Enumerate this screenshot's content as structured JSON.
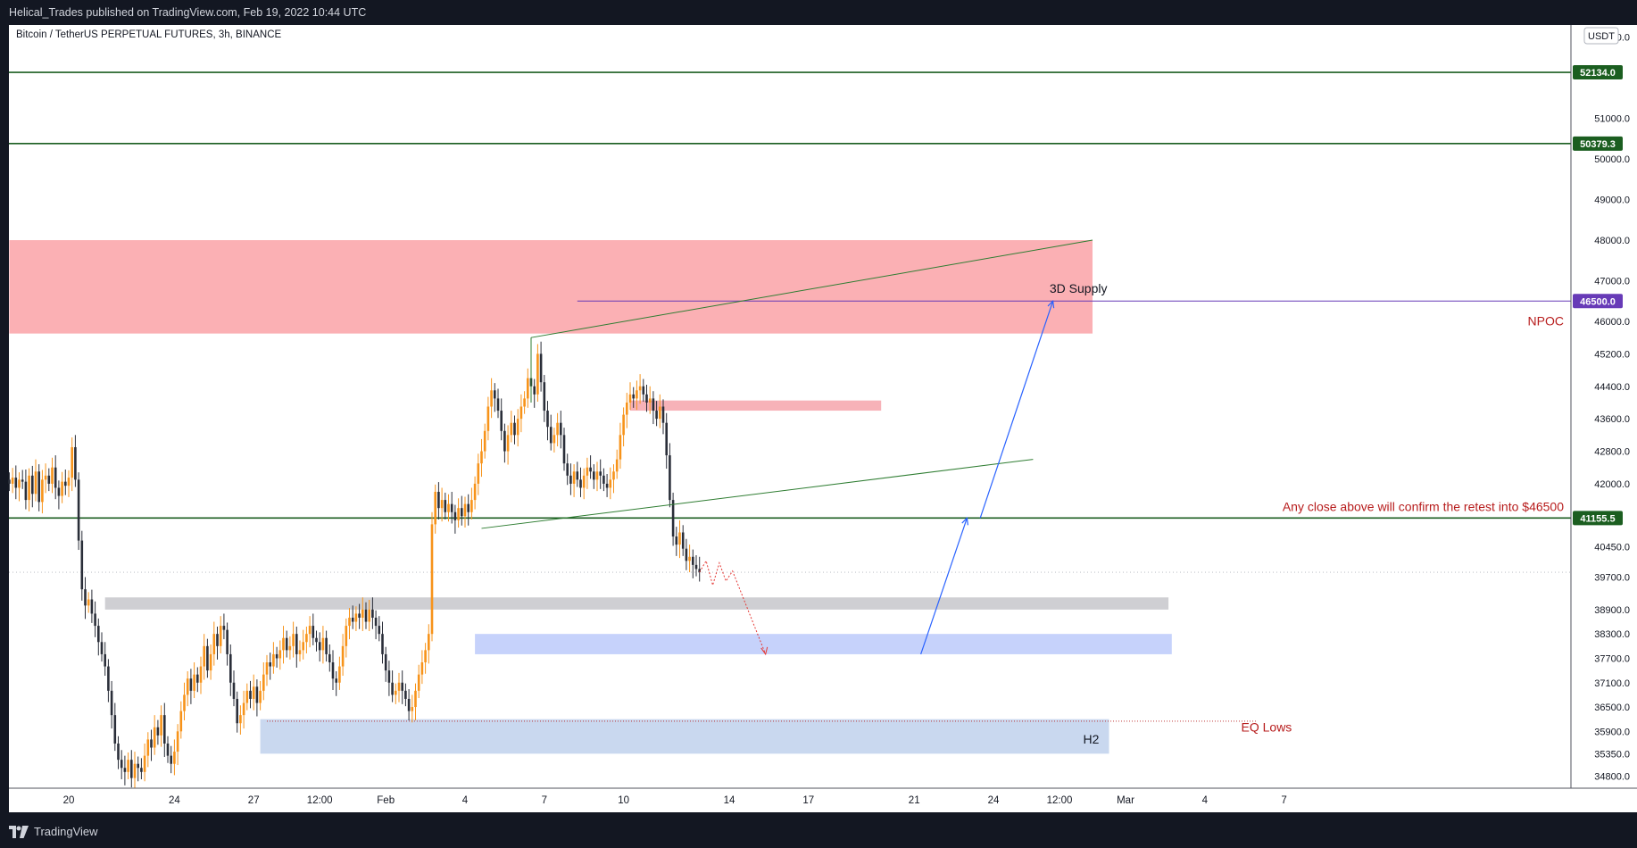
{
  "header": {
    "published": "Helical_Trades published on TradingView.com, Feb 19, 2022 10:44 UTC"
  },
  "footer": {
    "brand": "TradingView"
  },
  "chart_data": {
    "type": "candlestick",
    "symbol_title": "Bitcoin / TetherUS PERPETUAL FUTURES, 3h, BINANCE",
    "currency": "USDT",
    "ylim": [
      34500,
      53300
    ],
    "y_ticks": [
      53000,
      51000,
      50000,
      49000,
      48000,
      47000,
      46000,
      45200,
      44400,
      43600,
      42800,
      42000,
      40450,
      39700,
      38900,
      38300,
      37700,
      37100,
      36500,
      35900,
      35350,
      34800
    ],
    "y_tick_labels": [
      "53000.0",
      "51000.0",
      "50000.0",
      "49000.0",
      "48000.0",
      "47000.0",
      "46000.0",
      "45200.0",
      "44400.0",
      "43600.0",
      "42800.0",
      "42000.0",
      "40450.0",
      "39700.0",
      "38900.0",
      "38300.0",
      "37700.0",
      "37100.0",
      "36500.0",
      "35900.0",
      "35350.0",
      "34800.0"
    ],
    "x_labels": [
      {
        "label": "20",
        "x": 0
      },
      {
        "label": "24",
        "x": 32
      },
      {
        "label": "27",
        "x": 56
      },
      {
        "label": "12:00",
        "x": 76
      },
      {
        "label": "Feb",
        "x": 96
      },
      {
        "label": "4",
        "x": 120
      },
      {
        "label": "7",
        "x": 144
      },
      {
        "label": "10",
        "x": 168
      },
      {
        "label": "14",
        "x": 200
      },
      {
        "label": "17",
        "x": 224
      },
      {
        "label": "21",
        "x": 256
      },
      {
        "label": "24",
        "x": 280
      },
      {
        "label": "12:00",
        "x": 300
      },
      {
        "label": "Mar",
        "x": 320
      },
      {
        "label": "4",
        "x": 344
      },
      {
        "label": "7",
        "x": 368
      }
    ],
    "price_levels": [
      {
        "value": 52134.0,
        "label": "52134.0",
        "color": "#1b5e20"
      },
      {
        "value": 50379.3,
        "label": "50379.3",
        "color": "#1b5e20"
      },
      {
        "value": 46500.0,
        "label": "46500.0",
        "color": "#673ab7"
      },
      {
        "value": 41155.5,
        "label": "41155.5",
        "color": "#1b5e20"
      }
    ],
    "zones": [
      {
        "name": "3D Supply",
        "x0": -18,
        "x1": 310,
        "y0": 45700,
        "y1": 48000,
        "color": "#fbb0b4"
      },
      {
        "name": "small-supply",
        "x0": 170,
        "x1": 246,
        "y0": 43800,
        "y1": 44050,
        "color": "#f7b2b8"
      },
      {
        "name": "grey-zone",
        "x0": 11,
        "x1": 333,
        "y0": 38900,
        "y1": 39200,
        "color": "#cfcfd3"
      },
      {
        "name": "blue-zone",
        "x0": 123,
        "x1": 334,
        "y0": 37800,
        "y1": 38300,
        "color": "#c6d2fb"
      },
      {
        "name": "H2-zone",
        "x0": 58,
        "x1": 315,
        "y0": 35350,
        "y1": 36200,
        "color": "#c9d8ef"
      }
    ],
    "annotations": [
      {
        "text": "3D Supply",
        "color": "#131722"
      },
      {
        "text": "NPOC",
        "color": "#b71c1c"
      },
      {
        "text": "Any close above will confirm the retest into $46500",
        "color": "#b71c1c"
      },
      {
        "text": "EQ Lows",
        "color": "#b71c1c"
      },
      {
        "text": "H2",
        "color": "#131722"
      }
    ],
    "trendlines": [
      {
        "x0": 140,
        "y0": 45600,
        "x1": 310,
        "y1": 48000,
        "color": "#2e7d32"
      },
      {
        "x0": 125,
        "y0": 40900,
        "x1": 292,
        "y1": 42600,
        "color": "#2e7d32"
      }
    ],
    "arrows": [
      {
        "points": [
          [
            258,
            37800
          ],
          [
            272,
            41155
          ]
        ],
        "color": "#2962ff"
      },
      {
        "points": [
          [
            276,
            41155
          ],
          [
            298,
            46500
          ]
        ],
        "color": "#2962ff"
      }
    ],
    "last_price_dotted": 39820,
    "eq_lows_level": 36150,
    "candle_colors": {
      "up": "#f7931a",
      "down": "#2a2e39"
    },
    "candles": [
      [
        -18,
        42000
      ],
      [
        -17,
        42150
      ],
      [
        -16,
        41900
      ],
      [
        -15,
        42100
      ],
      [
        -14,
        42050
      ],
      [
        -13,
        41600
      ],
      [
        -12,
        42200
      ],
      [
        -11,
        41750
      ],
      [
        -10,
        42300
      ],
      [
        -9,
        41550
      ],
      [
        -8,
        42100
      ],
      [
        -7,
        42200
      ],
      [
        -6,
        42000
      ],
      [
        -5,
        42400
      ],
      [
        -4,
        41900
      ],
      [
        -3,
        41700
      ],
      [
        -2,
        42050
      ],
      [
        -1,
        41950
      ],
      [
        0,
        42150
      ],
      [
        1,
        42900
      ],
      [
        2,
        42100
      ],
      [
        3,
        40600
      ],
      [
        4,
        39400
      ],
      [
        5,
        39000
      ],
      [
        6,
        39150
      ],
      [
        7,
        38800
      ],
      [
        8,
        38500
      ],
      [
        9,
        38100
      ],
      [
        10,
        37800
      ],
      [
        11,
        37500
      ],
      [
        12,
        36900
      ],
      [
        13,
        36300
      ],
      [
        14,
        35600
      ],
      [
        15,
        35200
      ],
      [
        16,
        35000
      ],
      [
        17,
        34900
      ],
      [
        18,
        35200
      ],
      [
        19,
        34750
      ],
      [
        20,
        35100
      ],
      [
        21,
        35000
      ],
      [
        22,
        34900
      ],
      [
        23,
        35300
      ],
      [
        24,
        35700
      ],
      [
        25,
        35500
      ],
      [
        26,
        36000
      ],
      [
        27,
        35800
      ],
      [
        28,
        36300
      ],
      [
        29,
        35600
      ],
      [
        30,
        35300
      ],
      [
        31,
        35100
      ],
      [
        32,
        35400
      ],
      [
        33,
        35900
      ],
      [
        34,
        36400
      ],
      [
        35,
        36800
      ],
      [
        36,
        37200
      ],
      [
        37,
        36900
      ],
      [
        38,
        37300
      ],
      [
        39,
        37100
      ],
      [
        40,
        37500
      ],
      [
        41,
        38000
      ],
      [
        42,
        37400
      ],
      [
        43,
        37800
      ],
      [
        44,
        38300
      ],
      [
        45,
        38000
      ],
      [
        46,
        38500
      ],
      [
        47,
        38400
      ],
      [
        48,
        37800
      ],
      [
        49,
        37100
      ],
      [
        50,
        36700
      ],
      [
        51,
        36100
      ],
      [
        52,
        36300
      ],
      [
        53,
        36600
      ],
      [
        54,
        36900
      ],
      [
        55,
        36700
      ],
      [
        56,
        37000
      ],
      [
        57,
        36600
      ],
      [
        58,
        36900
      ],
      [
        59,
        37300
      ],
      [
        60,
        37600
      ],
      [
        61,
        37500
      ],
      [
        62,
        37800
      ],
      [
        63,
        37700
      ],
      [
        64,
        37900
      ],
      [
        65,
        38200
      ],
      [
        66,
        37900
      ],
      [
        67,
        38000
      ],
      [
        68,
        38300
      ],
      [
        69,
        37800
      ],
      [
        70,
        37900
      ],
      [
        71,
        38100
      ],
      [
        72,
        38300
      ],
      [
        73,
        38500
      ],
      [
        74,
        38200
      ],
      [
        75,
        38100
      ],
      [
        76,
        37900
      ],
      [
        77,
        38200
      ],
      [
        78,
        37800
      ],
      [
        79,
        37600
      ],
      [
        80,
        37200
      ],
      [
        81,
        37100
      ],
      [
        82,
        37500
      ],
      [
        83,
        38000
      ],
      [
        84,
        38500
      ],
      [
        85,
        38700
      ],
      [
        86,
        38600
      ],
      [
        87,
        38800
      ],
      [
        88,
        38700
      ],
      [
        89,
        38900
      ],
      [
        90,
        38600
      ],
      [
        91,
        38900
      ],
      [
        92,
        38700
      ],
      [
        93,
        38500
      ],
      [
        94,
        38300
      ],
      [
        95,
        37800
      ],
      [
        96,
        37400
      ],
      [
        97,
        37100
      ],
      [
        98,
        36800
      ],
      [
        99,
        36900
      ],
      [
        100,
        37100
      ],
      [
        101,
        36900
      ],
      [
        102,
        36700
      ],
      [
        103,
        36400
      ],
      [
        104,
        36500
      ],
      [
        105,
        36900
      ],
      [
        106,
        37300
      ],
      [
        107,
        37600
      ],
      [
        108,
        37900
      ],
      [
        109,
        38300
      ],
      [
        110,
        41000
      ],
      [
        111,
        41800
      ],
      [
        112,
        41400
      ],
      [
        113,
        41600
      ],
      [
        114,
        41300
      ],
      [
        115,
        41500
      ],
      [
        116,
        41300
      ],
      [
        117,
        41100
      ],
      [
        118,
        41400
      ],
      [
        119,
        41200
      ],
      [
        120,
        41500
      ],
      [
        121,
        41300
      ],
      [
        122,
        41600
      ],
      [
        123,
        42000
      ],
      [
        124,
        42500
      ],
      [
        125,
        42800
      ],
      [
        126,
        43300
      ],
      [
        127,
        43900
      ],
      [
        128,
        44300
      ],
      [
        129,
        44100
      ],
      [
        130,
        43800
      ],
      [
        131,
        43300
      ],
      [
        132,
        42800
      ],
      [
        133,
        43200
      ],
      [
        134,
        43500
      ],
      [
        135,
        43200
      ],
      [
        136,
        43600
      ],
      [
        137,
        43900
      ],
      [
        138,
        44100
      ],
      [
        139,
        44600
      ],
      [
        140,
        44400
      ],
      [
        141,
        44200
      ],
      [
        142,
        45200
      ],
      [
        143,
        44500
      ],
      [
        144,
        43800
      ],
      [
        145,
        43400
      ],
      [
        146,
        43000
      ],
      [
        147,
        43200
      ],
      [
        148,
        43500
      ],
      [
        149,
        43200
      ],
      [
        150,
        42500
      ],
      [
        151,
        42200
      ],
      [
        152,
        42000
      ],
      [
        153,
        42300
      ],
      [
        154,
        42100
      ],
      [
        155,
        41900
      ],
      [
        156,
        42200
      ],
      [
        157,
        42400
      ],
      [
        158,
        42300
      ],
      [
        159,
        42100
      ],
      [
        160,
        42300
      ],
      [
        161,
        42200
      ],
      [
        162,
        42000
      ],
      [
        163,
        41900
      ],
      [
        164,
        42100
      ],
      [
        165,
        42300
      ],
      [
        166,
        42600
      ],
      [
        167,
        43200
      ],
      [
        168,
        43700
      ],
      [
        169,
        44000
      ],
      [
        170,
        44200
      ],
      [
        171,
        44100
      ],
      [
        172,
        44300
      ],
      [
        173,
        44400
      ],
      [
        174,
        44200
      ],
      [
        175,
        44000
      ],
      [
        176,
        44100
      ],
      [
        177,
        43800
      ],
      [
        178,
        43600
      ],
      [
        179,
        43900
      ],
      [
        180,
        43500
      ],
      [
        181,
        42700
      ],
      [
        182,
        41600
      ],
      [
        183,
        40700
      ],
      [
        184,
        40500
      ],
      [
        185,
        40800
      ],
      [
        186,
        40400
      ],
      [
        187,
        40100
      ],
      [
        188,
        40200
      ],
      [
        189,
        40000
      ],
      [
        190,
        39900
      ],
      [
        191,
        39820
      ]
    ],
    "projection_path": [
      [
        191,
        39820
      ],
      [
        193,
        40100
      ],
      [
        195,
        39500
      ],
      [
        197,
        40050
      ],
      [
        199,
        39600
      ],
      [
        201,
        39850
      ],
      [
        211,
        37800
      ]
    ]
  }
}
